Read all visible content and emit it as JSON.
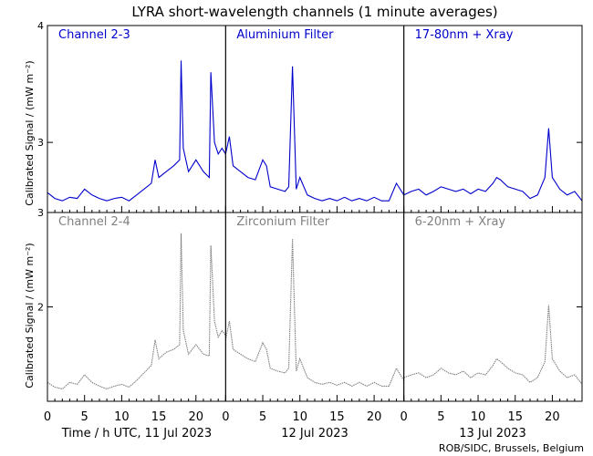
{
  "title": "LYRA short-wavelength channels (1 minute averages)",
  "ylabel": "Calibrated Signal / (mW m⁻²)",
  "xlabel_day1": "Time / h UTC, 11 Jul 2023",
  "xlabel_day2": "12 Jul 2023",
  "xlabel_day3": "13 Jul 2023",
  "credit": "ROB/SIDC, Brussels, Belgium",
  "colors": {
    "top": "#0000cc",
    "bottom": "#808080",
    "axis": "#000000"
  },
  "chart_data": {
    "type": "line",
    "x_ticks": [
      "0",
      "5",
      "10",
      "15",
      "20"
    ],
    "rows": [
      {
        "yticks": [
          "4",
          "3"
        ],
        "ylim": [
          2.4,
          4.0
        ],
        "color": "#0000cc",
        "panels": [
          {
            "name": "Channel 2-3",
            "x": [
              0,
              1,
              2,
              3,
              4,
              5,
              6,
              7,
              8,
              9,
              10,
              11,
              12,
              13,
              14,
              14.5,
              15,
              16,
              17,
              17.8,
              18,
              18.3,
              19,
              19.5,
              20,
              21,
              21.8,
              22,
              22.5,
              23,
              23.5,
              24
            ],
            "y": [
              2.57,
              2.52,
              2.5,
              2.53,
              2.52,
              2.6,
              2.55,
              2.52,
              2.5,
              2.52,
              2.53,
              2.5,
              2.55,
              2.6,
              2.65,
              2.85,
              2.7,
              2.75,
              2.8,
              2.85,
              3.7,
              2.95,
              2.75,
              2.8,
              2.85,
              2.75,
              2.7,
              3.6,
              3.0,
              2.9,
              2.95,
              2.9
            ]
          },
          {
            "name": "Aluminium Filter",
            "x": [
              0,
              0.5,
              1,
              2,
              3,
              4,
              5,
              5.5,
              6,
              7,
              8,
              8.5,
              9,
              9.5,
              10,
              11,
              12,
              13,
              14,
              15,
              16,
              17,
              18,
              19,
              20,
              21,
              22,
              23,
              24
            ],
            "y": [
              2.9,
              3.05,
              2.8,
              2.75,
              2.7,
              2.68,
              2.85,
              2.8,
              2.62,
              2.6,
              2.58,
              2.62,
              3.65,
              2.6,
              2.7,
              2.55,
              2.52,
              2.5,
              2.52,
              2.5,
              2.53,
              2.5,
              2.52,
              2.5,
              2.53,
              2.5,
              2.5,
              2.65,
              2.55
            ]
          },
          {
            "name": "17-80nm + Xray",
            "x": [
              0,
              1,
              2,
              3,
              4,
              5,
              6,
              7,
              8,
              9,
              10,
              11,
              12,
              12.5,
              13,
              14,
              15,
              16,
              17,
              18,
              19,
              19.5,
              20,
              21,
              22,
              23,
              24
            ],
            "y": [
              2.55,
              2.58,
              2.6,
              2.55,
              2.58,
              2.62,
              2.6,
              2.58,
              2.6,
              2.56,
              2.6,
              2.58,
              2.65,
              2.7,
              2.68,
              2.62,
              2.6,
              2.58,
              2.52,
              2.55,
              2.7,
              3.12,
              2.7,
              2.6,
              2.55,
              2.58,
              2.5
            ]
          }
        ]
      },
      {
        "yticks": [
          "3",
          "2"
        ],
        "ylim": [
          1.0,
          3.0
        ],
        "color": "#808080",
        "panels": [
          {
            "name": "Channel 2-4",
            "x": [
              0,
              1,
              2,
              3,
              4,
              5,
              6,
              7,
              8,
              9,
              10,
              11,
              12,
              13,
              14,
              14.5,
              15,
              16,
              17,
              17.8,
              18,
              18.3,
              19,
              19.5,
              20,
              21,
              21.8,
              22,
              22.5,
              23,
              23.5,
              24
            ],
            "y": [
              1.2,
              1.15,
              1.13,
              1.2,
              1.18,
              1.28,
              1.2,
              1.16,
              1.13,
              1.16,
              1.18,
              1.15,
              1.22,
              1.3,
              1.38,
              1.65,
              1.45,
              1.52,
              1.55,
              1.6,
              2.78,
              1.75,
              1.5,
              1.55,
              1.6,
              1.5,
              1.48,
              2.65,
              1.85,
              1.68,
              1.75,
              1.7
            ]
          },
          {
            "name": "Zirconium Filter",
            "x": [
              0,
              0.5,
              1,
              2,
              3,
              4,
              5,
              5.5,
              6,
              7,
              8,
              8.5,
              9,
              9.5,
              10,
              11,
              12,
              13,
              14,
              15,
              16,
              17,
              18,
              19,
              20,
              21,
              22,
              23,
              24
            ],
            "y": [
              1.65,
              1.85,
              1.55,
              1.5,
              1.45,
              1.42,
              1.62,
              1.55,
              1.35,
              1.32,
              1.3,
              1.35,
              2.72,
              1.32,
              1.45,
              1.25,
              1.2,
              1.18,
              1.2,
              1.17,
              1.2,
              1.16,
              1.2,
              1.16,
              1.2,
              1.16,
              1.16,
              1.35,
              1.22
            ]
          },
          {
            "name": "6-20nm + Xray",
            "x": [
              0,
              1,
              2,
              3,
              4,
              5,
              6,
              7,
              8,
              9,
              10,
              11,
              12,
              12.5,
              13,
              14,
              15,
              16,
              17,
              18,
              19,
              19.5,
              20,
              21,
              22,
              23,
              24
            ],
            "y": [
              1.25,
              1.28,
              1.3,
              1.25,
              1.28,
              1.35,
              1.3,
              1.28,
              1.32,
              1.25,
              1.3,
              1.28,
              1.38,
              1.45,
              1.42,
              1.35,
              1.3,
              1.28,
              1.2,
              1.25,
              1.42,
              2.02,
              1.45,
              1.32,
              1.25,
              1.28,
              1.18
            ]
          }
        ]
      }
    ]
  }
}
